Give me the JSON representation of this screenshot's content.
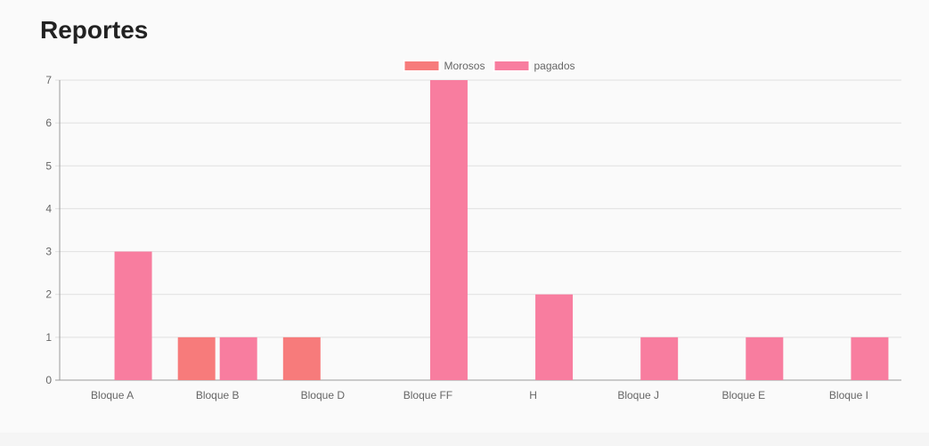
{
  "header": {
    "title": "Reportes"
  },
  "chart_data": {
    "type": "bar",
    "categories": [
      "Bloque A",
      "Bloque B",
      "Bloque D",
      "Bloque FF",
      "H",
      "Bloque J",
      "Bloque E",
      "Bloque I"
    ],
    "series": [
      {
        "name": "Morosos",
        "color": "#f77b7b",
        "values": [
          0,
          1,
          1,
          0,
          0,
          0,
          0,
          0
        ]
      },
      {
        "name": "pagados",
        "color": "#f87d9f",
        "values": [
          3,
          1,
          0,
          7,
          2,
          1,
          1,
          1
        ]
      }
    ],
    "ylim": [
      0,
      7
    ],
    "yticks": [
      0,
      1,
      2,
      3,
      4,
      5,
      6,
      7
    ],
    "grid": true,
    "legend": "top-center",
    "xlabel": "",
    "ylabel": ""
  }
}
